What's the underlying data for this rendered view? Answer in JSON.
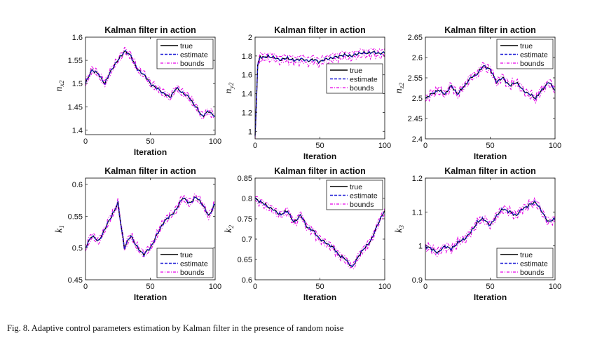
{
  "caption": "Fig. 8.  Adaptive control parameters estimation by Kalman filter in the presence of random noise",
  "colors": {
    "true": "#000000",
    "estimate": "#1f1fd6",
    "bounds": "#e600e6"
  },
  "chart_data": [
    {
      "type": "line",
      "title": "Kalman filter in action",
      "xlabel": "Iteration",
      "ylabel": "n",
      "ylabel_sub": "x2",
      "xlim": [
        0,
        100
      ],
      "ylim": [
        1.39,
        1.6
      ],
      "xticks": [
        0,
        50,
        100
      ],
      "xtick_labels": [
        "0",
        "50",
        "100"
      ],
      "yticks": [
        1.4,
        1.45,
        1.5,
        1.55,
        1.6
      ],
      "ytick_labels": [
        "1.4",
        "1.45",
        "1.5",
        "1.55",
        "1.6"
      ],
      "legend": {
        "position": "top-right",
        "entries": [
          "true",
          "estimate",
          "bounds"
        ]
      },
      "grid": false,
      "bound_offset": 0.025,
      "series": [
        {
          "name": "true",
          "x": [
            0,
            5,
            10,
            15,
            20,
            25,
            30,
            35,
            40,
            45,
            50,
            55,
            60,
            65,
            70,
            75,
            80,
            85,
            90,
            95,
            100
          ],
          "y": [
            1.5,
            1.53,
            1.52,
            1.5,
            1.53,
            1.55,
            1.57,
            1.56,
            1.53,
            1.52,
            1.5,
            1.49,
            1.48,
            1.47,
            1.49,
            1.48,
            1.47,
            1.45,
            1.43,
            1.44,
            1.43
          ]
        }
      ]
    },
    {
      "type": "line",
      "title": "Kalman filter in action",
      "xlabel": "Iteration",
      "ylabel": "n",
      "ylabel_sub": "y2",
      "xlim": [
        0,
        100
      ],
      "ylim": [
        0.92,
        2.0
      ],
      "xticks": [
        0,
        50,
        100
      ],
      "xtick_labels": [
        "0",
        "50",
        "100"
      ],
      "yticks": [
        1,
        1.2,
        1.4,
        1.6,
        1.8,
        2
      ],
      "ytick_labels": [
        "1",
        "1.2",
        "1.4",
        "1.6",
        "1.8",
        "2"
      ],
      "legend": {
        "position": "center-right",
        "entries": [
          "true",
          "estimate",
          "bounds"
        ]
      },
      "grid": false,
      "bound_offset": 0.03,
      "series": [
        {
          "name": "true",
          "x": [
            0,
            2,
            4,
            6,
            10,
            15,
            20,
            25,
            30,
            35,
            40,
            45,
            50,
            55,
            60,
            65,
            70,
            75,
            80,
            85,
            90,
            95,
            100
          ],
          "y": [
            0.95,
            1.7,
            1.8,
            1.78,
            1.8,
            1.78,
            1.76,
            1.78,
            1.75,
            1.77,
            1.75,
            1.76,
            1.74,
            1.77,
            1.78,
            1.8,
            1.81,
            1.8,
            1.83,
            1.83,
            1.84,
            1.83,
            1.83
          ]
        }
      ]
    },
    {
      "type": "line",
      "title": "Kalman filter in action",
      "xlabel": "Iteration",
      "ylabel": "n",
      "ylabel_sub": "z2",
      "xlim": [
        0,
        100
      ],
      "ylim": [
        2.4,
        2.65
      ],
      "xticks": [
        0,
        50,
        100
      ],
      "xtick_labels": [
        "0",
        "50",
        "100"
      ],
      "yticks": [
        2.4,
        2.45,
        2.5,
        2.55,
        2.6,
        2.65
      ],
      "ytick_labels": [
        "2.4",
        "2.45",
        "2.5",
        "2.55",
        "2.6",
        "2.65"
      ],
      "legend": {
        "position": "top-right",
        "entries": [
          "true",
          "estimate",
          "bounds"
        ]
      },
      "grid": false,
      "bound_offset": 0.025,
      "series": [
        {
          "name": "true",
          "x": [
            0,
            5,
            10,
            15,
            20,
            25,
            30,
            35,
            40,
            45,
            50,
            55,
            60,
            65,
            70,
            75,
            80,
            85,
            90,
            95,
            100
          ],
          "y": [
            2.5,
            2.51,
            2.52,
            2.51,
            2.53,
            2.51,
            2.53,
            2.55,
            2.56,
            2.58,
            2.57,
            2.54,
            2.55,
            2.53,
            2.54,
            2.52,
            2.51,
            2.5,
            2.52,
            2.54,
            2.52
          ]
        }
      ]
    },
    {
      "type": "line",
      "title": "Kalman filter in action",
      "xlabel": "Iteration",
      "ylabel": "k",
      "ylabel_sub": "1",
      "xlim": [
        0,
        100
      ],
      "ylim": [
        0.45,
        0.61
      ],
      "xticks": [
        0,
        50,
        100
      ],
      "xtick_labels": [
        "0",
        "50",
        "100"
      ],
      "yticks": [
        0.45,
        0.5,
        0.55,
        0.6
      ],
      "ytick_labels": [
        "0.45",
        "0.5",
        "0.55",
        "0.6"
      ],
      "legend": {
        "position": "bottom-right",
        "entries": [
          "true",
          "estimate",
          "bounds"
        ]
      },
      "grid": false,
      "bound_offset": 0.025,
      "series": [
        {
          "name": "true",
          "x": [
            0,
            5,
            10,
            15,
            20,
            25,
            30,
            35,
            40,
            45,
            50,
            55,
            60,
            65,
            70,
            75,
            80,
            85,
            90,
            95,
            100
          ],
          "y": [
            0.5,
            0.52,
            0.51,
            0.53,
            0.55,
            0.57,
            0.5,
            0.52,
            0.5,
            0.49,
            0.5,
            0.52,
            0.54,
            0.55,
            0.56,
            0.58,
            0.57,
            0.58,
            0.57,
            0.55,
            0.57
          ]
        }
      ]
    },
    {
      "type": "line",
      "title": "Kalman filter in action",
      "xlabel": "Iteration",
      "ylabel": "k",
      "ylabel_sub": "2",
      "xlim": [
        0,
        100
      ],
      "ylim": [
        0.6,
        0.85
      ],
      "xticks": [
        0,
        50,
        100
      ],
      "xtick_labels": [
        "0",
        "50",
        "100"
      ],
      "yticks": [
        0.6,
        0.65,
        0.7,
        0.75,
        0.8,
        0.85
      ],
      "ytick_labels": [
        "0.6",
        "0.65",
        "0.7",
        "0.75",
        "0.8",
        "0.85"
      ],
      "legend": {
        "position": "top-right",
        "entries": [
          "true",
          "estimate",
          "bounds"
        ]
      },
      "grid": false,
      "bound_offset": 0.025,
      "series": [
        {
          "name": "true",
          "x": [
            0,
            5,
            10,
            15,
            20,
            25,
            30,
            35,
            40,
            45,
            50,
            55,
            60,
            65,
            70,
            75,
            80,
            85,
            90,
            95,
            100
          ],
          "y": [
            0.8,
            0.79,
            0.78,
            0.77,
            0.76,
            0.77,
            0.74,
            0.76,
            0.73,
            0.72,
            0.7,
            0.69,
            0.68,
            0.66,
            0.65,
            0.63,
            0.66,
            0.68,
            0.7,
            0.74,
            0.77
          ]
        }
      ]
    },
    {
      "type": "line",
      "title": "Kalman filter in action",
      "xlabel": "Iteration",
      "ylabel": "k",
      "ylabel_sub": "3",
      "xlim": [
        0,
        100
      ],
      "ylim": [
        0.9,
        1.2
      ],
      "xticks": [
        0,
        50,
        100
      ],
      "xtick_labels": [
        "0",
        "50",
        "100"
      ],
      "yticks": [
        0.9,
        1,
        1.1,
        1.2
      ],
      "ytick_labels": [
        "0.9",
        "1",
        "1.1",
        "1.2"
      ],
      "legend": {
        "position": "bottom-right",
        "entries": [
          "true",
          "estimate",
          "bounds"
        ]
      },
      "grid": false,
      "bound_offset": 0.025,
      "series": [
        {
          "name": "true",
          "x": [
            0,
            5,
            10,
            15,
            20,
            25,
            30,
            35,
            40,
            45,
            50,
            55,
            60,
            65,
            70,
            75,
            80,
            85,
            90,
            95,
            100
          ],
          "y": [
            1.0,
            0.99,
            0.98,
            1.0,
            0.99,
            1.01,
            1.02,
            1.04,
            1.07,
            1.08,
            1.06,
            1.09,
            1.11,
            1.1,
            1.09,
            1.11,
            1.12,
            1.13,
            1.1,
            1.07,
            1.08
          ]
        }
      ]
    }
  ]
}
